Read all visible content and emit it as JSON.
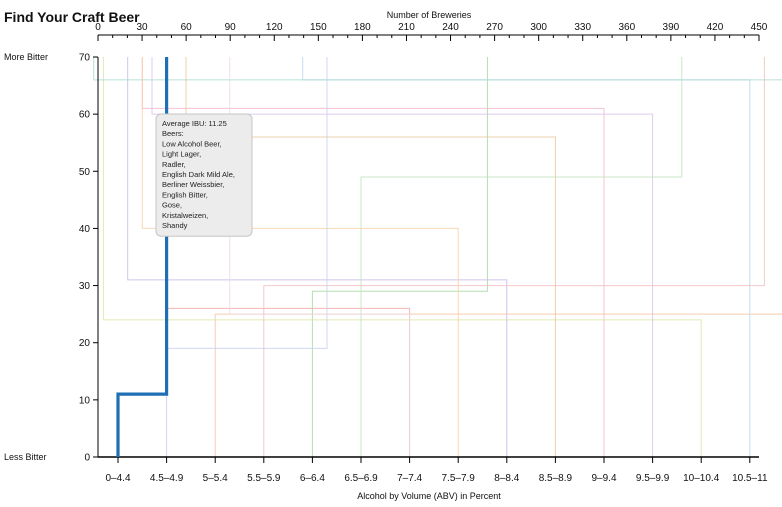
{
  "chart_data": {
    "type": "line",
    "title": "Find Your Craft Beer",
    "x_top_label": "Number of Breweries",
    "x_bottom_label": "Alcohol by Volume (ABV) in Percent",
    "y_top_label": "More Bitter",
    "y_bottom_label": "Less Bitter",
    "x_top_ticks": [
      0,
      30,
      60,
      90,
      120,
      150,
      180,
      210,
      240,
      270,
      300,
      330,
      360,
      390,
      420,
      450
    ],
    "x_top_range": [
      0,
      450
    ],
    "y_ticks": [
      0,
      10,
      20,
      30,
      40,
      50,
      60,
      70
    ],
    "y_range": [
      0,
      70
    ],
    "abv_categories": [
      "0–4.4",
      "4.5–4.9",
      "5–5.4",
      "5.5–5.9",
      "6–6.4",
      "6.5–6.9",
      "7–7.4",
      "7.5–7.9",
      "8–8.4",
      "8.5–8.9",
      "9–9.4",
      "9.5–9.9",
      "10–10.4",
      "10.5–11"
    ],
    "grid": false,
    "highlight": {
      "color": "#1f6fb4",
      "points": [
        [
          0,
          0
        ],
        [
          0,
          11
        ],
        [
          1,
          11
        ],
        [
          1,
          70
        ]
      ]
    },
    "background_series": [
      {
        "color": "#f4a6a6",
        "points": [
          [
            6,
            0
          ],
          [
            6,
            26
          ],
          [
            1,
            26
          ],
          [
            1,
            70
          ]
        ]
      },
      {
        "color": "#a6d8a6",
        "points": [
          [
            4,
            0
          ],
          [
            4,
            29
          ],
          [
            7.6,
            29
          ],
          [
            7.6,
            70
          ]
        ]
      },
      {
        "color": "#c9b8e8",
        "points": [
          [
            8,
            0
          ],
          [
            8,
            31
          ],
          [
            0.2,
            31
          ],
          [
            0.2,
            70
          ]
        ]
      },
      {
        "color": "#f7c6a0",
        "points": [
          [
            2,
            0
          ],
          [
            2,
            25
          ],
          [
            13.9,
            25
          ],
          [
            13.9,
            70
          ]
        ]
      },
      {
        "color": "#f6b9c9",
        "points": [
          [
            10,
            0
          ],
          [
            10,
            61
          ],
          [
            0.5,
            61
          ],
          [
            0.5,
            70
          ]
        ]
      },
      {
        "color": "#b8d8f0",
        "points": [
          [
            13,
            0
          ],
          [
            13,
            66
          ],
          [
            3.8,
            66
          ],
          [
            3.8,
            70
          ]
        ]
      },
      {
        "color": "#d7e8a8",
        "points": [
          [
            12,
            0
          ],
          [
            12,
            24
          ],
          [
            -0.3,
            24
          ],
          [
            -0.3,
            70
          ]
        ]
      },
      {
        "color": "#a9dbd0",
        "points": [
          [
            14,
            0
          ],
          [
            14,
            66
          ],
          [
            -0.5,
            66
          ],
          [
            -0.5,
            70
          ]
        ]
      },
      {
        "color": "#e8c8a0",
        "points": [
          [
            9,
            0
          ],
          [
            9,
            56
          ],
          [
            1.4,
            56
          ],
          [
            1.4,
            70
          ]
        ]
      },
      {
        "color": "#d9c3ea",
        "points": [
          [
            11,
            0
          ],
          [
            11,
            60
          ],
          [
            0.7,
            60
          ],
          [
            0.7,
            70
          ]
        ]
      },
      {
        "color": "#bfe3bf",
        "points": [
          [
            5,
            0
          ],
          [
            5,
            49
          ],
          [
            11.6,
            49
          ],
          [
            11.6,
            70
          ]
        ]
      },
      {
        "color": "#f2c0c0",
        "points": [
          [
            3,
            0
          ],
          [
            3,
            30
          ],
          [
            13.3,
            30
          ],
          [
            13.3,
            70
          ]
        ]
      },
      {
        "color": "#f8d0a8",
        "points": [
          [
            7,
            0
          ],
          [
            7,
            40
          ],
          [
            0.5,
            40
          ],
          [
            0.5,
            70
          ]
        ]
      },
      {
        "color": "#c8d0f0",
        "points": [
          [
            1,
            0
          ],
          [
            1,
            19
          ],
          [
            4.3,
            19
          ],
          [
            4.3,
            70
          ]
        ]
      },
      {
        "color": "#f0d8e8",
        "points": [
          [
            6,
            0
          ],
          [
            6,
            25
          ],
          [
            2.3,
            25
          ],
          [
            2.3,
            70
          ]
        ]
      }
    ],
    "tooltip": {
      "lines": [
        "Average IBU: 11.25",
        "Beers:",
        "Low Alcohol Beer,",
        "Light Lager,",
        "Radler,",
        "English Dark Mild Ale,",
        "Berliner Weissbier,",
        "English Bitter,",
        "Gose,",
        "Kristalweizen,",
        "Shandy"
      ]
    }
  }
}
